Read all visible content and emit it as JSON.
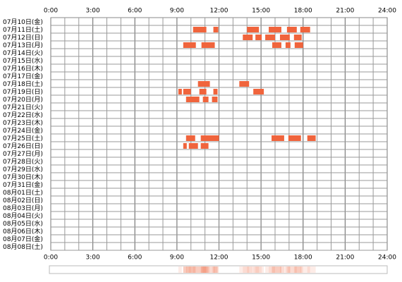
{
  "chart_data": {
    "type": "timeline",
    "xlim": [
      0,
      24
    ],
    "xticks": [
      {
        "value": 0,
        "label": "0:00"
      },
      {
        "value": 3,
        "label": "3:00"
      },
      {
        "value": 6,
        "label": "6:00"
      },
      {
        "value": 9,
        "label": "9:00"
      },
      {
        "value": 12,
        "label": "12:00"
      },
      {
        "value": 15,
        "label": "15:00"
      },
      {
        "value": 18,
        "label": "18:00"
      },
      {
        "value": 21,
        "label": "21:00"
      },
      {
        "value": 24,
        "label": "24:00"
      }
    ],
    "categories": [
      "07月10日(金)",
      "07月11日(土)",
      "07月12日(日)",
      "07月13日(月)",
      "07月14日(火)",
      "07月15日(水)",
      "07月16日(木)",
      "07月17日(金)",
      "07月18日(土)",
      "07月19日(日)",
      "07月20日(月)",
      "07月21日(火)",
      "07月22日(水)",
      "07月23日(木)",
      "07月24日(金)",
      "07月25日(土)",
      "07月26日(日)",
      "07月27日(月)",
      "07月28日(火)",
      "07月29日(水)",
      "07月30日(木)",
      "07月31日(金)",
      "08月01日(土)",
      "08月02日(日)",
      "08月03日(月)",
      "08月04日(火)",
      "08月05日(水)",
      "08月06日(木)",
      "08月07日(金)",
      "08月08日(土)"
    ],
    "color": "#f0643c",
    "events": [
      {
        "row": 1,
        "start": 10.15,
        "end": 11.1
      },
      {
        "row": 1,
        "start": 11.6,
        "end": 11.95
      },
      {
        "row": 1,
        "start": 14.0,
        "end": 14.85
      },
      {
        "row": 1,
        "start": 15.55,
        "end": 16.45
      },
      {
        "row": 1,
        "start": 16.85,
        "end": 17.55
      },
      {
        "row": 1,
        "start": 17.8,
        "end": 18.5
      },
      {
        "row": 2,
        "start": 13.7,
        "end": 14.4
      },
      {
        "row": 2,
        "start": 14.6,
        "end": 15.05
      },
      {
        "row": 2,
        "start": 15.3,
        "end": 16.0
      },
      {
        "row": 2,
        "start": 16.35,
        "end": 17.05
      },
      {
        "row": 2,
        "start": 17.35,
        "end": 17.9
      },
      {
        "row": 3,
        "start": 9.45,
        "end": 10.35
      },
      {
        "row": 3,
        "start": 10.75,
        "end": 11.7
      },
      {
        "row": 3,
        "start": 15.8,
        "end": 16.45
      },
      {
        "row": 3,
        "start": 16.75,
        "end": 17.1
      },
      {
        "row": 3,
        "start": 17.4,
        "end": 18.0
      },
      {
        "row": 8,
        "start": 10.5,
        "end": 11.35
      },
      {
        "row": 8,
        "start": 13.45,
        "end": 14.15
      },
      {
        "row": 9,
        "start": 9.1,
        "end": 9.35
      },
      {
        "row": 9,
        "start": 9.45,
        "end": 10.0
      },
      {
        "row": 9,
        "start": 10.6,
        "end": 11.1
      },
      {
        "row": 9,
        "start": 11.6,
        "end": 11.9
      },
      {
        "row": 9,
        "start": 14.45,
        "end": 15.2
      },
      {
        "row": 10,
        "start": 9.65,
        "end": 10.6
      },
      {
        "row": 10,
        "start": 10.85,
        "end": 11.25
      },
      {
        "row": 10,
        "start": 11.5,
        "end": 11.9
      },
      {
        "row": 15,
        "start": 9.65,
        "end": 10.3
      },
      {
        "row": 15,
        "start": 10.7,
        "end": 12.0
      },
      {
        "row": 15,
        "start": 15.75,
        "end": 16.65
      },
      {
        "row": 15,
        "start": 16.95,
        "end": 17.85
      },
      {
        "row": 15,
        "start": 18.3,
        "end": 18.9
      },
      {
        "row": 16,
        "start": 9.45,
        "end": 9.7
      },
      {
        "row": 16,
        "start": 9.85,
        "end": 10.5
      },
      {
        "row": 16,
        "start": 10.7,
        "end": 11.25
      }
    ]
  }
}
